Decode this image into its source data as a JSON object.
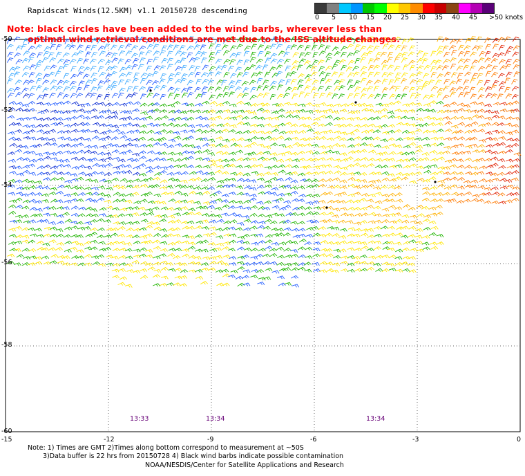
{
  "header": {
    "title": "Rapidscat Winds(12.5KM) v1.1 20150728 descending",
    "note_line1": "Note: black circles have been added to the wind barbs, wherever less than",
    "note_line2": "optimal wind retrieval conditions are met due to the ISS altitude changes."
  },
  "colorbar": {
    "colors": [
      "#3a3a3a",
      "#808080",
      "#00c8ff",
      "#0096ff",
      "#00c800",
      "#00ff00",
      "#ffff00",
      "#ffc800",
      "#ff8c00",
      "#ff0000",
      "#c80000",
      "#8b4513",
      "#ff00ff",
      "#b400b4",
      "#5a0078"
    ],
    "labels": [
      "0",
      "5",
      "10",
      "15",
      "20",
      "25",
      "30",
      "35",
      "40",
      "45",
      ">50 knots"
    ],
    "unit": "knots"
  },
  "axes": {
    "lat_labels": [
      "-50",
      "-52",
      "-54",
      "-56",
      "-58",
      "-60"
    ],
    "lon_labels": [
      "-15",
      "-12",
      "-9",
      "-6",
      "-3",
      "0"
    ]
  },
  "time_labels": [
    "13:33",
    "13:34",
    "13:34"
  ],
  "footer": {
    "line1": "Note: 1) Times are GMT 2)Times along bottom correspond to measurement at ~50S",
    "line2": "3)Data buffer is 22 hrs from 20150728 4) Black wind barbs indicate possible contamination",
    "line3": "NOAA/NESDIS/Center for Satellite Applications and Research"
  }
}
